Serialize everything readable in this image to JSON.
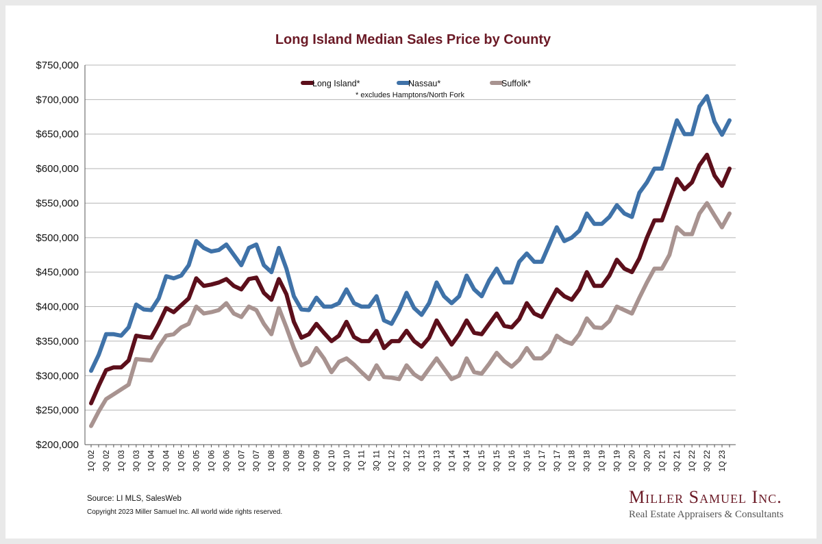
{
  "brand": {
    "name": "Miller Samuel Inc.",
    "tagline": "Real Estate Appraisers & Consultants"
  },
  "footer": {
    "source": "Source:  LI MLS, SalesWeb",
    "copyright": "Copyright 2023 Miller Samuel Inc.  All world wide rights reserved."
  },
  "chart_data": {
    "type": "line",
    "title": "Long Island Median Sales Price by County",
    "xlabel": "",
    "ylabel": "",
    "ylim": [
      200000,
      750000
    ],
    "ytick_step": 50000,
    "ytick_format": "currency",
    "grid": true,
    "legend_position": "top-center",
    "note": "*  excludes Hamptons/North Fork",
    "x_tick_labels": [
      "1Q 02",
      "3Q 02",
      "1Q 03",
      "3Q 03",
      "1Q 04",
      "3Q 04",
      "1Q 05",
      "3Q 05",
      "1Q 06",
      "3Q 06",
      "1Q 07",
      "3Q 07",
      "1Q 08",
      "3Q 08",
      "1Q 09",
      "3Q 09",
      "1Q 10",
      "3Q 10",
      "1Q 11",
      "3Q 11",
      "1Q 12",
      "3Q 12",
      "1Q 13",
      "3Q 13",
      "1Q 14",
      "3Q 14",
      "1Q 15",
      "3Q 15",
      "1Q 16",
      "3Q 16",
      "1Q 17",
      "3Q 17",
      "1Q 18",
      "3Q 18",
      "1Q 19",
      "3Q 19",
      "1Q 20",
      "3Q 20",
      "1Q 21",
      "3Q 21",
      "1Q 22",
      "3Q 22",
      "1Q 23"
    ],
    "x": [
      "1Q 02",
      "2Q 02",
      "3Q 02",
      "4Q 02",
      "1Q 03",
      "2Q 03",
      "3Q 03",
      "4Q 03",
      "1Q 04",
      "2Q 04",
      "3Q 04",
      "4Q 04",
      "1Q 05",
      "2Q 05",
      "3Q 05",
      "4Q 05",
      "1Q 06",
      "2Q 06",
      "3Q 06",
      "4Q 06",
      "1Q 07",
      "2Q 07",
      "3Q 07",
      "4Q 07",
      "1Q 08",
      "2Q 08",
      "3Q 08",
      "4Q 08",
      "1Q 09",
      "2Q 09",
      "3Q 09",
      "4Q 09",
      "1Q 10",
      "2Q 10",
      "3Q 10",
      "4Q 10",
      "1Q 11",
      "2Q 11",
      "3Q 11",
      "4Q 11",
      "1Q 12",
      "2Q 12",
      "3Q 12",
      "4Q 12",
      "1Q 13",
      "2Q 13",
      "3Q 13",
      "4Q 13",
      "1Q 14",
      "2Q 14",
      "3Q 14",
      "4Q 14",
      "1Q 15",
      "2Q 15",
      "3Q 15",
      "4Q 15",
      "1Q 16",
      "2Q 16",
      "3Q 16",
      "4Q 16",
      "1Q 17",
      "2Q 17",
      "3Q 17",
      "4Q 17",
      "1Q 18",
      "2Q 18",
      "3Q 18",
      "4Q 18",
      "1Q 19",
      "2Q 19",
      "3Q 19",
      "4Q 19",
      "1Q 20",
      "2Q 20",
      "3Q 20",
      "4Q 20",
      "1Q 21",
      "2Q 21",
      "3Q 21",
      "4Q 21",
      "1Q 22",
      "2Q 22",
      "3Q 22",
      "4Q 22",
      "1Q 23",
      "2Q 23"
    ],
    "series": [
      {
        "name": "Long Island*",
        "color": "#5c0f1b",
        "values": [
          260000,
          285000,
          308000,
          312000,
          312000,
          322000,
          358000,
          356000,
          355000,
          375000,
          398000,
          392000,
          402000,
          412000,
          441000,
          430000,
          432000,
          435000,
          440000,
          430000,
          425000,
          440000,
          442000,
          420000,
          410000,
          440000,
          418000,
          378000,
          355000,
          360000,
          375000,
          362000,
          350000,
          358000,
          378000,
          356000,
          350000,
          350000,
          365000,
          340000,
          350000,
          350000,
          365000,
          350000,
          342000,
          355000,
          380000,
          362000,
          345000,
          360000,
          380000,
          362000,
          360000,
          375000,
          390000,
          372000,
          370000,
          382000,
          405000,
          390000,
          385000,
          405000,
          425000,
          415000,
          410000,
          425000,
          450000,
          430000,
          430000,
          445000,
          468000,
          455000,
          450000,
          470000,
          500000,
          525000,
          525000,
          555000,
          585000,
          570000,
          580000,
          605000,
          620000,
          590000,
          575000,
          600000
        ]
      },
      {
        "name": "Nassau*",
        "color": "#3f72a8",
        "values": [
          307000,
          330000,
          360000,
          360000,
          358000,
          370000,
          403000,
          396000,
          395000,
          412000,
          444000,
          441000,
          445000,
          460000,
          495000,
          485000,
          480000,
          482000,
          490000,
          475000,
          460000,
          485000,
          490000,
          460000,
          450000,
          485000,
          455000,
          415000,
          396000,
          395000,
          413000,
          400000,
          400000,
          405000,
          425000,
          405000,
          400000,
          400000,
          415000,
          380000,
          375000,
          395000,
          420000,
          398000,
          388000,
          405000,
          435000,
          415000,
          405000,
          415000,
          445000,
          425000,
          415000,
          438000,
          455000,
          435000,
          435000,
          465000,
          477000,
          465000,
          465000,
          490000,
          515000,
          495000,
          500000,
          510000,
          535000,
          520000,
          520000,
          530000,
          547000,
          535000,
          530000,
          565000,
          580000,
          600000,
          600000,
          635000,
          670000,
          650000,
          650000,
          690000,
          705000,
          668000,
          649000,
          670000
        ]
      },
      {
        "name": "Suffolk*",
        "color": "#a89390",
        "values": [
          227000,
          248000,
          266000,
          273000,
          280000,
          287000,
          324000,
          323000,
          322000,
          342000,
          358000,
          360000,
          370000,
          375000,
          400000,
          390000,
          392000,
          395000,
          405000,
          390000,
          385000,
          400000,
          395000,
          375000,
          360000,
          398000,
          370000,
          340000,
          315000,
          320000,
          340000,
          325000,
          305000,
          320000,
          325000,
          316000,
          305000,
          295000,
          315000,
          298000,
          297000,
          295000,
          315000,
          302000,
          295000,
          310000,
          325000,
          310000,
          295000,
          300000,
          325000,
          305000,
          303000,
          317000,
          333000,
          321000,
          313000,
          323000,
          340000,
          325000,
          325000,
          335000,
          358000,
          350000,
          346000,
          360000,
          383000,
          370000,
          369000,
          379000,
          400000,
          395000,
          390000,
          413000,
          435000,
          455000,
          455000,
          475000,
          515000,
          505000,
          505000,
          535000,
          550000,
          532000,
          515000,
          535000
        ]
      }
    ]
  }
}
